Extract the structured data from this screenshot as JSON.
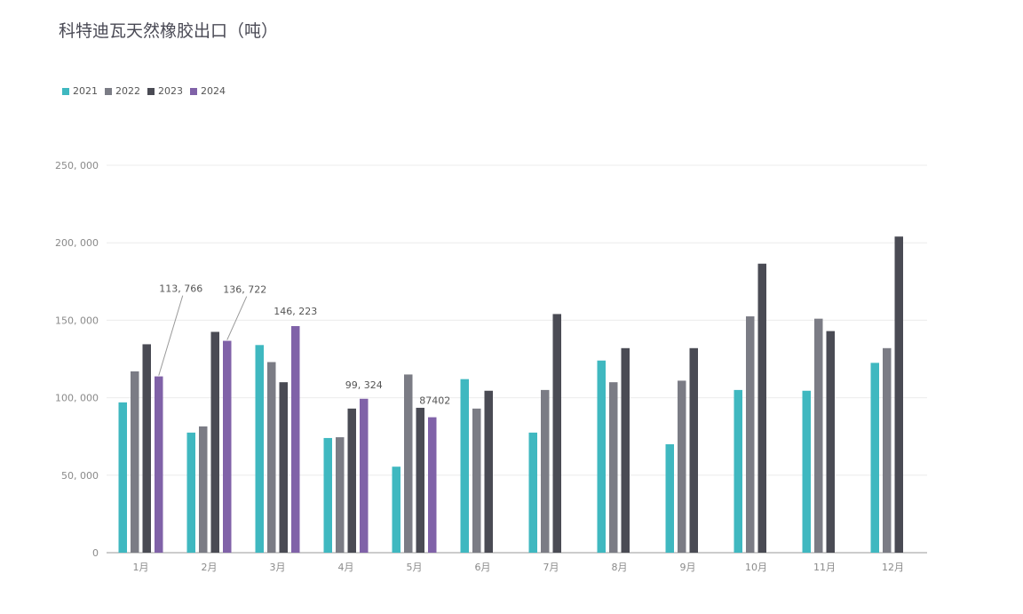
{
  "chart_data": {
    "type": "bar",
    "title": "科特迪瓦天然橡胶出口（吨）",
    "categories": [
      "1月",
      "2月",
      "3月",
      "4月",
      "5月",
      "6月",
      "7月",
      "8月",
      "9月",
      "10月",
      "11月",
      "12月"
    ],
    "series": [
      {
        "name": "2021",
        "color": "#3fb8c0",
        "values": [
          97000,
          77500,
          134000,
          74000,
          55500,
          112000,
          77500,
          124000,
          70000,
          105000,
          104500,
          122500
        ]
      },
      {
        "name": "2022",
        "color": "#7b7c85",
        "values": [
          117000,
          81500,
          123000,
          74500,
          115000,
          93000,
          105000,
          110000,
          111000,
          152500,
          151000,
          132000
        ]
      },
      {
        "name": "2023",
        "color": "#4a4b54",
        "values": [
          134500,
          142500,
          110000,
          93000,
          93500,
          104500,
          154000,
          132000,
          132000,
          186500,
          143000,
          204000
        ]
      },
      {
        "name": "2024",
        "color": "#8062a8",
        "values": [
          113766,
          136722,
          146223,
          99324,
          87402,
          null,
          null,
          null,
          null,
          null,
          null,
          null
        ]
      }
    ],
    "ylim": [
      0,
      250000
    ],
    "yticks": [
      "0",
      "50, 000",
      "100, 000",
      "150, 000",
      "200, 000",
      "250, 000"
    ],
    "data_labels": [
      "113, 766",
      "136, 722",
      "146, 223",
      "99, 324",
      "87402"
    ],
    "grid": true,
    "legend_position": "top-left"
  }
}
